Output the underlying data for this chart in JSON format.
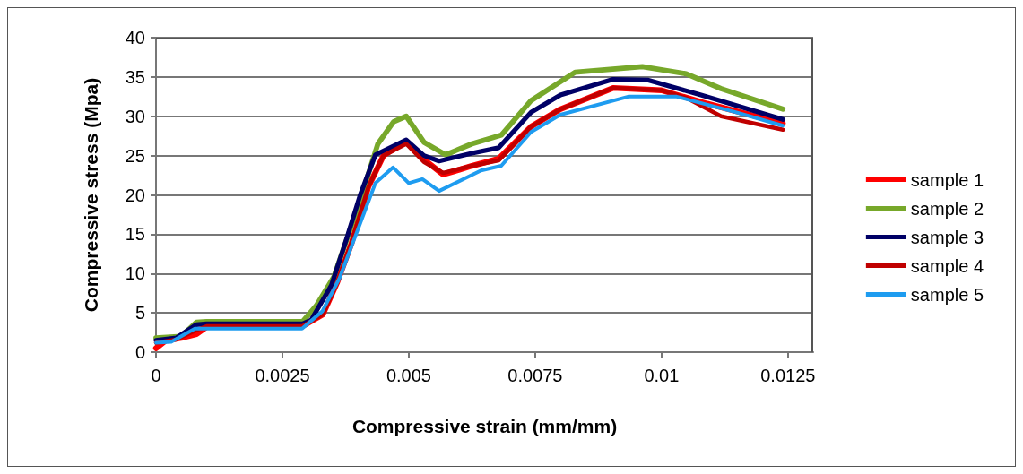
{
  "chart_data": {
    "type": "line",
    "xlabel": "Compressive strain (mm/mm)",
    "ylabel": "Compressive stress (Mpa)",
    "xlim": [
      0,
      0.013
    ],
    "xticks": [
      0,
      0.0025,
      0.005,
      0.0075,
      0.01,
      0.0125
    ],
    "ylim": [
      0,
      40
    ],
    "yticks": [
      0,
      5,
      10,
      15,
      20,
      25,
      30,
      35,
      40
    ],
    "grid": "y",
    "legend": "right",
    "marker": "none",
    "line_style": "solid",
    "series": [
      {
        "name": "sample 1",
        "color": "#ff0000",
        "x": [
          0,
          0.0002,
          0.0005,
          0.0008,
          0.001,
          0.0029,
          0.0033,
          0.00358,
          0.00387,
          0.0042,
          0.0045,
          0.00495,
          0.0053,
          0.00568,
          0.006,
          0.00625,
          0.00678,
          0.00742,
          0.008,
          0.00904,
          0.01,
          0.0109,
          0.0124
        ],
        "values": [
          0.5,
          1.5,
          1.8,
          2.3,
          3.2,
          3.3,
          4.8,
          8.8,
          13.9,
          21,
          25,
          26.8,
          24.5,
          22.6,
          23.2,
          23.7,
          24.6,
          28.7,
          30.9,
          33.6,
          33.3,
          31.6,
          29.1
        ]
      },
      {
        "name": "sample 2",
        "color": "#77a82a",
        "x": [
          0,
          0.0005,
          0.0008,
          0.001,
          0.0029,
          0.00317,
          0.00352,
          0.00381,
          0.00411,
          0.00439,
          0.0047,
          0.00495,
          0.0053,
          0.00573,
          0.00625,
          0.00683,
          0.00742,
          0.00829,
          0.00962,
          0.01049,
          0.01118,
          0.0124
        ],
        "values": [
          1.8,
          2,
          3.8,
          3.9,
          3.9,
          5.9,
          9.6,
          15,
          20.8,
          26.5,
          29.3,
          30,
          26.7,
          25.1,
          26.5,
          27.6,
          32,
          35.6,
          36.3,
          35.4,
          33.5,
          30.9
        ]
      },
      {
        "name": "sample 3",
        "color": "#000066",
        "x": [
          0,
          0.0004,
          0.0008,
          0.001,
          0.0029,
          0.00307,
          0.00347,
          0.00376,
          0.00404,
          0.00434,
          0.00495,
          0.0053,
          0.0056,
          0.00625,
          0.00678,
          0.00742,
          0.008,
          0.00904,
          0.00974,
          0.01078,
          0.0124
        ],
        "values": [
          1.5,
          1.8,
          3.5,
          3.6,
          3.6,
          4.1,
          8.5,
          14.2,
          20,
          25.1,
          27,
          25,
          24.3,
          25.3,
          26,
          30.5,
          32.7,
          34.7,
          34.6,
          32.7,
          29.6
        ]
      },
      {
        "name": "sample 4",
        "color": "#c00000",
        "x": [
          0,
          0.0004,
          0.0008,
          0.001,
          0.0029,
          0.0033,
          0.00358,
          0.00387,
          0.0042,
          0.0045,
          0.00495,
          0.0053,
          0.00568,
          0.00625,
          0.00678,
          0.00742,
          0.008,
          0.00904,
          0.01,
          0.0105,
          0.01118,
          0.0124
        ],
        "values": [
          1.2,
          1.6,
          2.8,
          3.3,
          3.3,
          4.8,
          8.8,
          14,
          21,
          25,
          26.5,
          24.2,
          22.8,
          23.7,
          24.4,
          28.7,
          30.9,
          33.6,
          33.3,
          32.3,
          30,
          28.3
        ]
      },
      {
        "name": "sample 5",
        "color": "#1e9cf0",
        "x": [
          0,
          0.0003,
          0.00077,
          0.001,
          0.00289,
          0.00329,
          0.00363,
          0.00397,
          0.00434,
          0.00469,
          0.005,
          0.00527,
          0.0056,
          0.00643,
          0.00683,
          0.00742,
          0.008,
          0.00934,
          0.0103,
          0.01148,
          0.0124
        ],
        "values": [
          1.2,
          1.3,
          3,
          3,
          3,
          5.2,
          9.4,
          15.2,
          21.5,
          23.5,
          21.5,
          22,
          20.5,
          23.1,
          23.7,
          28,
          30.2,
          32.5,
          32.5,
          30.5,
          28.8
        ]
      }
    ]
  }
}
